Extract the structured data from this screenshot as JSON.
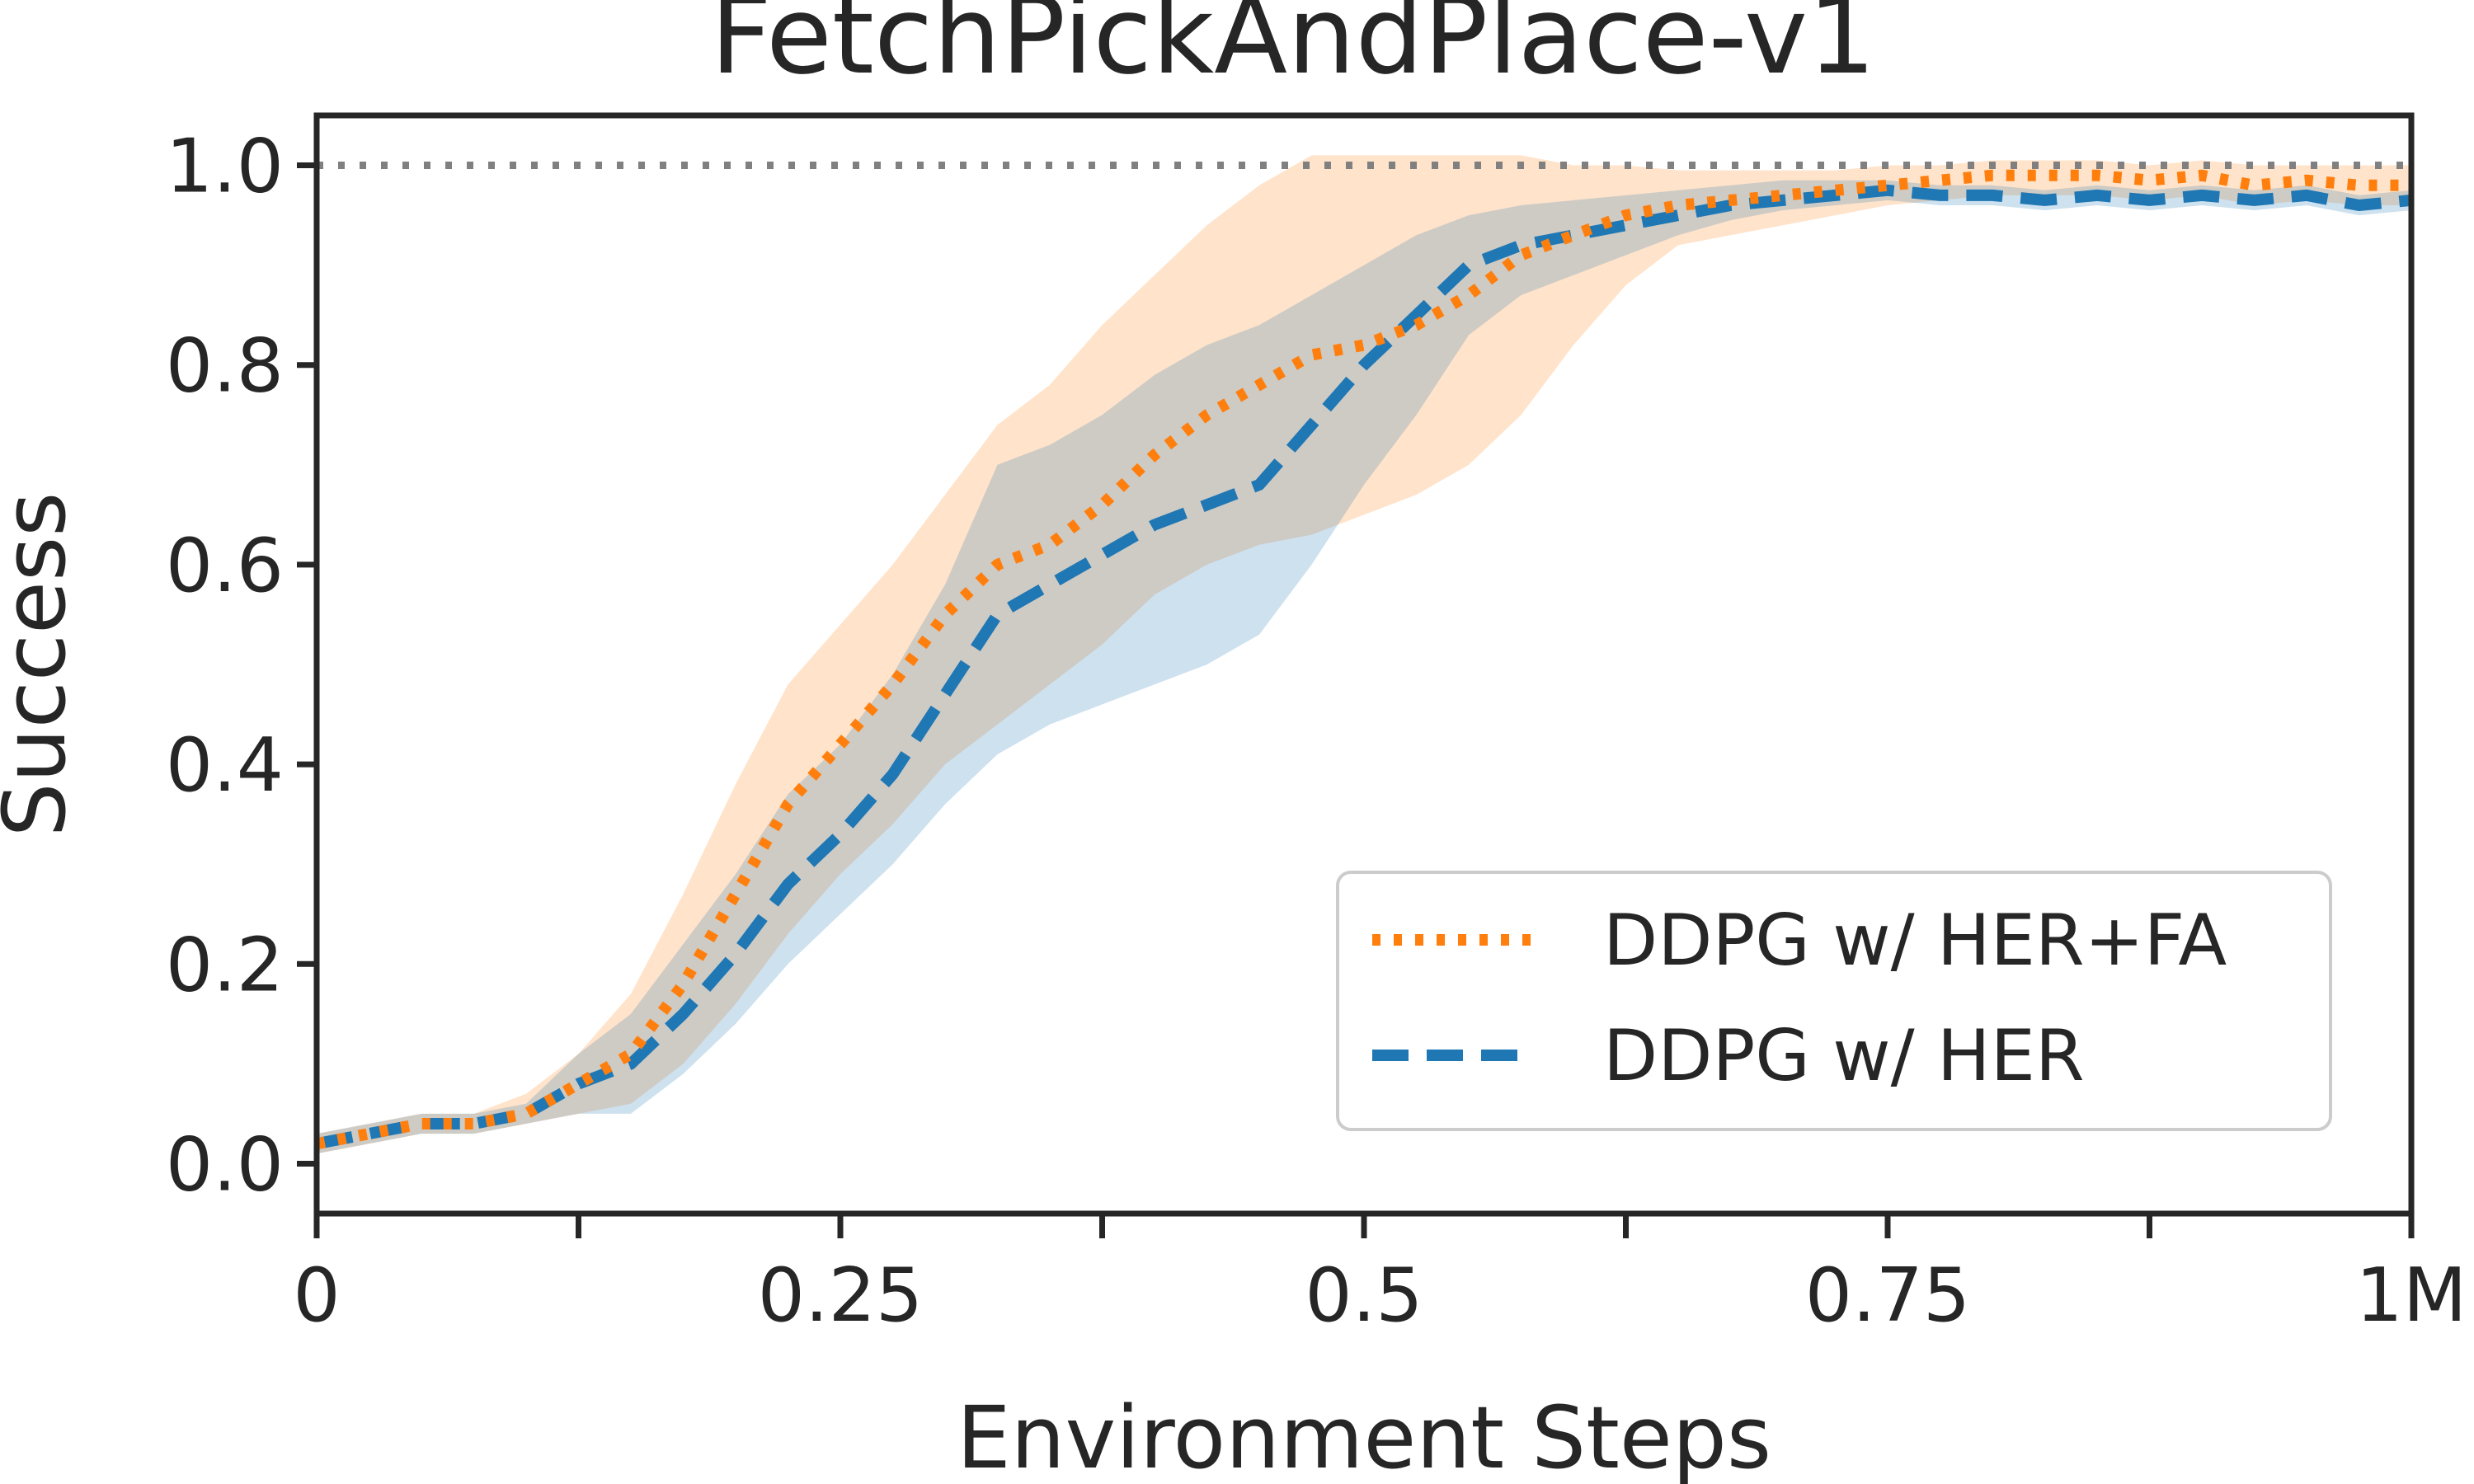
{
  "chart_data": {
    "type": "line",
    "title": "FetchPickAndPlace-v1",
    "xlabel": "Environment Steps",
    "ylabel": "Success",
    "xlim": [
      0,
      1.0
    ],
    "ylim": [
      -0.05,
      1.05
    ],
    "x_ticks": [
      {
        "value": 0,
        "label": "0"
      },
      {
        "value": 0.25,
        "label": "0.25"
      },
      {
        "value": 0.5,
        "label": "0.5"
      },
      {
        "value": 0.75,
        "label": "0.75"
      },
      {
        "value": 1.0,
        "label": "1M"
      }
    ],
    "x_minor_ticks": [
      0.125,
      0.375,
      0.625,
      0.875
    ],
    "y_ticks": [
      {
        "value": 0.0,
        "label": "0.0"
      },
      {
        "value": 0.2,
        "label": "0.2"
      },
      {
        "value": 0.4,
        "label": "0.4"
      },
      {
        "value": 0.6,
        "label": "0.6"
      },
      {
        "value": 0.8,
        "label": "0.8"
      },
      {
        "value": 1.0,
        "label": "1.0"
      }
    ],
    "reference_line": {
      "y": 1.0,
      "style": "dotted",
      "color": "#808080"
    },
    "grid": false,
    "legend_position": "lower-right",
    "x": [
      0,
      0.025,
      0.05,
      0.075,
      0.1,
      0.125,
      0.15,
      0.175,
      0.2,
      0.225,
      0.25,
      0.275,
      0.3,
      0.325,
      0.35,
      0.375,
      0.4,
      0.425,
      0.45,
      0.475,
      0.5,
      0.525,
      0.55,
      0.575,
      0.6,
      0.625,
      0.65,
      0.675,
      0.7,
      0.725,
      0.75,
      0.775,
      0.8,
      0.825,
      0.85,
      0.875,
      0.9,
      0.925,
      0.95,
      0.975,
      1.0
    ],
    "series": [
      {
        "name": "DDPG w/ HER+FA",
        "color": "#ff7f0e",
        "style": "dotted",
        "values": [
          0.02,
          0.03,
          0.04,
          0.04,
          0.05,
          0.08,
          0.11,
          0.18,
          0.27,
          0.36,
          0.42,
          0.48,
          0.55,
          0.6,
          0.62,
          0.66,
          0.71,
          0.75,
          0.78,
          0.81,
          0.82,
          0.84,
          0.87,
          0.91,
          0.93,
          0.95,
          0.96,
          0.965,
          0.97,
          0.975,
          0.98,
          0.985,
          0.99,
          0.99,
          0.99,
          0.985,
          0.99,
          0.98,
          0.985,
          0.98,
          0.98
        ],
        "lower": [
          0.01,
          0.02,
          0.03,
          0.03,
          0.04,
          0.05,
          0.06,
          0.1,
          0.16,
          0.23,
          0.29,
          0.34,
          0.4,
          0.44,
          0.48,
          0.52,
          0.57,
          0.6,
          0.62,
          0.63,
          0.65,
          0.67,
          0.7,
          0.75,
          0.82,
          0.88,
          0.92,
          0.93,
          0.94,
          0.95,
          0.96,
          0.965,
          0.97,
          0.97,
          0.97,
          0.965,
          0.97,
          0.96,
          0.965,
          0.96,
          0.96
        ],
        "upper": [
          0.03,
          0.04,
          0.05,
          0.05,
          0.07,
          0.11,
          0.17,
          0.27,
          0.38,
          0.48,
          0.54,
          0.6,
          0.67,
          0.74,
          0.78,
          0.84,
          0.89,
          0.94,
          0.98,
          1.01,
          1.01,
          1.01,
          1.01,
          1.01,
          1.0,
          1.0,
          0.995,
          0.995,
          0.995,
          0.995,
          1.0,
          1.0,
          1.005,
          1.005,
          1.005,
          1.0,
          1.005,
          1.0,
          1.0,
          1.0,
          1.0
        ]
      },
      {
        "name": "DDPG w/ HER",
        "color": "#1f77b4",
        "style": "dashed",
        "values": [
          0.02,
          0.03,
          0.04,
          0.04,
          0.05,
          0.08,
          0.1,
          0.15,
          0.21,
          0.28,
          0.33,
          0.39,
          0.47,
          0.55,
          0.58,
          0.61,
          0.64,
          0.66,
          0.68,
          0.74,
          0.8,
          0.85,
          0.9,
          0.92,
          0.93,
          0.94,
          0.95,
          0.96,
          0.965,
          0.97,
          0.975,
          0.97,
          0.97,
          0.965,
          0.97,
          0.965,
          0.97,
          0.965,
          0.97,
          0.96,
          0.965
        ],
        "lower": [
          0.01,
          0.02,
          0.03,
          0.03,
          0.04,
          0.05,
          0.05,
          0.09,
          0.14,
          0.2,
          0.25,
          0.3,
          0.36,
          0.41,
          0.44,
          0.46,
          0.48,
          0.5,
          0.53,
          0.6,
          0.68,
          0.75,
          0.83,
          0.87,
          0.89,
          0.91,
          0.93,
          0.945,
          0.955,
          0.96,
          0.965,
          0.96,
          0.96,
          0.955,
          0.96,
          0.955,
          0.96,
          0.955,
          0.96,
          0.95,
          0.955
        ],
        "upper": [
          0.03,
          0.04,
          0.05,
          0.05,
          0.06,
          0.11,
          0.15,
          0.22,
          0.29,
          0.37,
          0.42,
          0.49,
          0.58,
          0.7,
          0.72,
          0.75,
          0.79,
          0.82,
          0.84,
          0.87,
          0.9,
          0.93,
          0.95,
          0.96,
          0.965,
          0.97,
          0.975,
          0.98,
          0.985,
          0.985,
          0.985,
          0.98,
          0.98,
          0.975,
          0.98,
          0.975,
          0.98,
          0.975,
          0.98,
          0.97,
          0.975
        ]
      }
    ]
  }
}
